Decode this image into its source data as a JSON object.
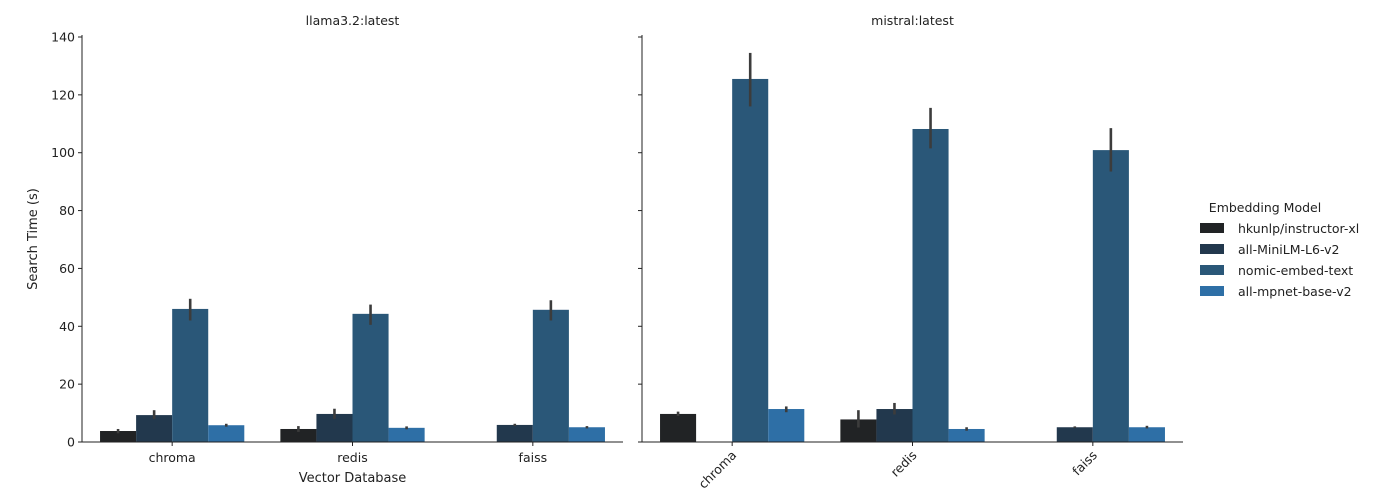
{
  "chart_data": {
    "type": "bar",
    "ylabel": "Search Time (s)",
    "xlabel": "Vector Database",
    "ylim": [
      0,
      140
    ],
    "yticks": [
      0,
      20,
      40,
      60,
      80,
      100,
      120,
      140
    ],
    "categories": [
      "chroma",
      "redis",
      "faiss"
    ],
    "legend": {
      "title": "Embedding Model",
      "placement": "right",
      "entries": [
        "hkunlp/instructor-xl",
        "all-MiniLM-L6-v2",
        "nomic-embed-text",
        "all-mpnet-base-v2"
      ]
    },
    "colors": [
      "#212325",
      "#22384d",
      "#2a5778",
      "#2e6fa6"
    ],
    "errorbar_color": "#3c3c3c",
    "panels": [
      {
        "title": "llama3.2:latest",
        "xlabel": "Vector Database",
        "rotate_xticks": false,
        "series": [
          {
            "name": "hkunlp/instructor-xl",
            "values": [
              3.8,
              4.5,
              null
            ],
            "err_low": [
              3.0,
              3.5,
              null
            ],
            "err_high": [
              4.5,
              5.5,
              null
            ]
          },
          {
            "name": "all-MiniLM-L6-v2",
            "values": [
              9.3,
              9.7,
              5.9
            ],
            "err_low": [
              8.0,
              8.0,
              5.5
            ],
            "err_high": [
              11.0,
              11.5,
              6.3
            ]
          },
          {
            "name": "nomic-embed-text",
            "values": [
              46.0,
              44.3,
              45.7
            ],
            "err_low": [
              42.0,
              40.5,
              42.0
            ],
            "err_high": [
              49.5,
              47.5,
              49.0
            ]
          },
          {
            "name": "all-mpnet-base-v2",
            "values": [
              5.8,
              4.9,
              5.1
            ],
            "err_low": [
              5.3,
              4.4,
              4.7
            ],
            "err_high": [
              6.3,
              5.4,
              5.5
            ]
          }
        ]
      },
      {
        "title": "mistral:latest",
        "xlabel": "",
        "rotate_xticks": true,
        "series": [
          {
            "name": "hkunlp/instructor-xl",
            "values": [
              9.7,
              7.8,
              null
            ],
            "err_low": [
              9.0,
              5.0,
              null
            ],
            "err_high": [
              10.5,
              11.0,
              null
            ]
          },
          {
            "name": "all-MiniLM-L6-v2",
            "values": [
              null,
              11.4,
              5.1
            ],
            "err_low": [
              null,
              9.5,
              4.8
            ],
            "err_high": [
              null,
              13.5,
              5.4
            ]
          },
          {
            "name": "nomic-embed-text",
            "values": [
              125.5,
              108.2,
              100.9
            ],
            "err_low": [
              116.0,
              101.5,
              93.5
            ],
            "err_high": [
              134.5,
              115.5,
              108.5
            ]
          },
          {
            "name": "all-mpnet-base-v2",
            "values": [
              11.4,
              4.5,
              5.1
            ],
            "err_low": [
              10.3,
              3.9,
              4.7
            ],
            "err_high": [
              12.3,
              5.1,
              5.6
            ]
          }
        ]
      }
    ]
  }
}
